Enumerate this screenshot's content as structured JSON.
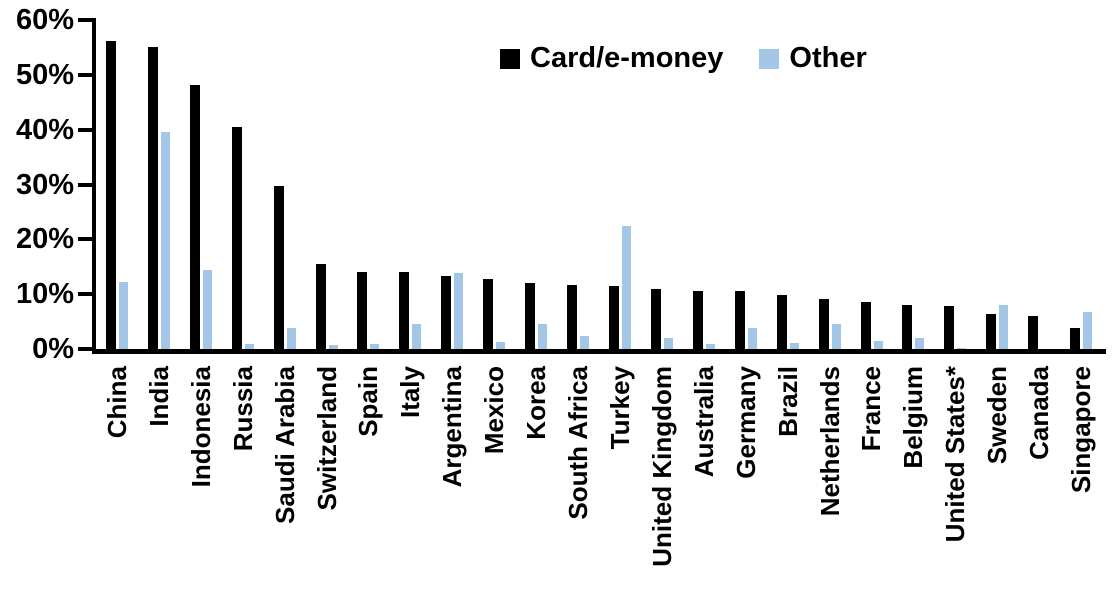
{
  "chart_data": {
    "type": "bar",
    "title": "",
    "xlabel": "",
    "ylabel": "",
    "ylim": [
      0,
      60
    ],
    "ytick_step": 10,
    "ytick_labels": [
      "0%",
      "10%",
      "20%",
      "30%",
      "40%",
      "50%",
      "60%"
    ],
    "grid": false,
    "legend_position": "top-center",
    "categories": [
      "China",
      "India",
      "Indonesia",
      "Russia",
      "Saudi Arabia",
      "Switzerland",
      "Spain",
      "Italy",
      "Argentina",
      "Mexico",
      "Korea",
      "South Africa",
      "Turkey",
      "United Kingdom",
      "Australia",
      "Germany",
      "Brazil",
      "Netherlands",
      "France",
      "Belgium",
      "United States*",
      "Sweden",
      "Canada",
      "Singapore"
    ],
    "series": [
      {
        "name": "Card/e-money",
        "color": "#000000",
        "values": [
          56.2,
          55.0,
          48.2,
          40.5,
          29.8,
          15.5,
          14.1,
          14.0,
          13.3,
          12.8,
          12.1,
          11.7,
          11.5,
          11.0,
          10.6,
          10.5,
          9.9,
          9.1,
          8.6,
          8.0,
          7.8,
          6.4,
          6.0,
          3.9
        ]
      },
      {
        "name": "Other",
        "color": "#A3C5E6",
        "values": [
          12.3,
          39.5,
          14.5,
          1.0,
          3.8,
          0.7,
          0.9,
          4.5,
          13.8,
          1.3,
          4.6,
          2.3,
          22.4,
          2.1,
          0.9,
          3.8,
          1.1,
          4.6,
          1.4,
          2.0,
          0.2,
          8.0,
          0.0,
          6.7
        ]
      }
    ],
    "axis_color": "#000000"
  }
}
